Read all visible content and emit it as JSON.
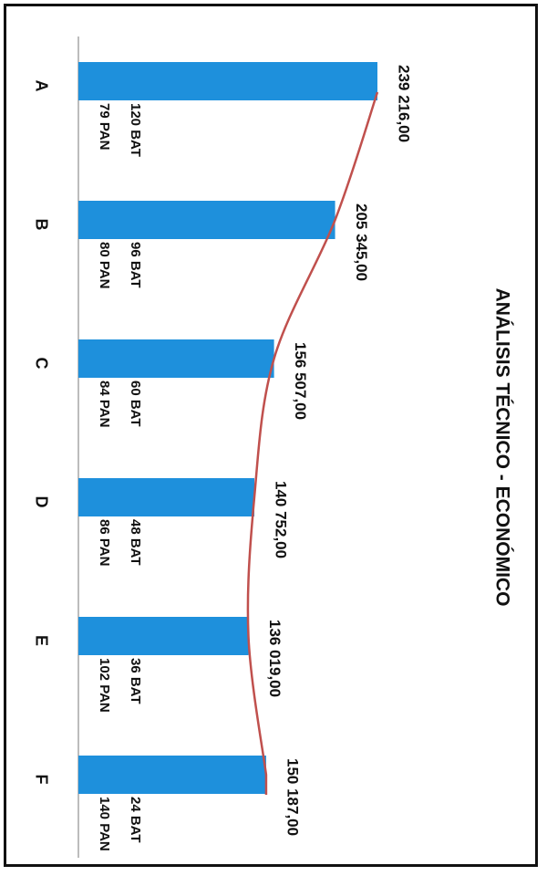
{
  "chart_data": {
    "type": "bar",
    "orientation": "rotated-90-clockwise",
    "title": "ANÁLISIS TÉCNICO - ECONÓMICO",
    "categories": [
      "A",
      "B",
      "C",
      "D",
      "E",
      "F"
    ],
    "values": [
      239216,
      205345,
      156507,
      140752,
      136019,
      150187
    ],
    "value_labels": [
      "239 216,00",
      "205 345,00",
      "156 507,00",
      "140 752,00",
      "136 019,00",
      "150 187,00"
    ],
    "bat_labels": [
      "120 BAT",
      "96 BAT",
      "60 BAT",
      "48 BAT",
      "36 BAT",
      "24 BAT"
    ],
    "pan_labels": [
      "79 PAN",
      "80 PAN",
      "84 PAN",
      "86 PAN",
      "102 PAN",
      "140 PAN"
    ],
    "trend_line": true,
    "grid": false,
    "legend": "none",
    "colors": {
      "bar": "#1E90DC",
      "trend": "#C0504D",
      "axis": "#A6A6A6",
      "text": "#111111",
      "frame": "#111111"
    }
  }
}
